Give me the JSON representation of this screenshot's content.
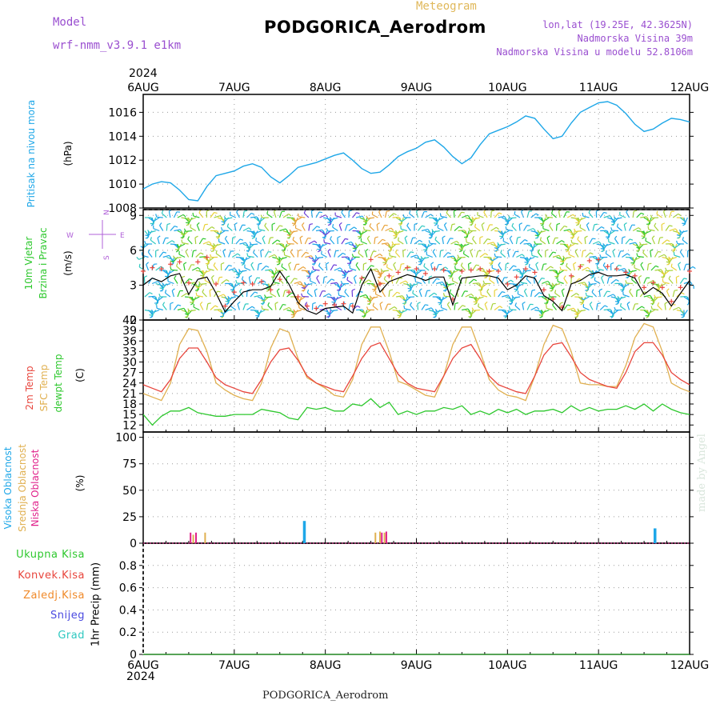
{
  "header": {
    "model_label": "Model",
    "model_name": "wrf-nmm_v3.9.1  e1km",
    "meteogram_label": "Meteogram",
    "station_title": "PODGORICA_Aerodrom",
    "lonlat": "lon,lat (19.25E, 42.3625N)",
    "elevation": "Nadmorska Visina 39m",
    "model_elevation": "Nadmorska Visina u modelu 52.8106m",
    "year": "2024",
    "footer": "PODGORICA_Aerodrom",
    "credit": "made by Angel"
  },
  "colors": {
    "pressure": "#1ea7e8",
    "temp2m": "#e8453c",
    "sfc_temp": "#e0b050",
    "dewpt": "#2ec82e",
    "high_cloud": "#1ea7e8",
    "mid_cloud": "#e0b050",
    "low_cloud": "#e0208a",
    "wind_speed": "#000000",
    "gust": "#e8453c"
  },
  "chart_data": [
    {
      "type": "line",
      "panel": "pressure",
      "ylabel_lines": [
        "Pritisak na nivou mora",
        "(hPa)"
      ],
      "ylim": [
        1008,
        1017.5
      ],
      "yticks": [
        "1008",
        "1010",
        "1012",
        "1014",
        "1016"
      ],
      "xticks": [
        "6AUG",
        "7AUG",
        "8AUG",
        "9AUG",
        "10AUG",
        "11AUG",
        "12AUG"
      ],
      "x_days": [
        0,
        0.1,
        0.2,
        0.3,
        0.4,
        0.5,
        0.6,
        0.7,
        0.8,
        0.9,
        1.0,
        1.1,
        1.2,
        1.3,
        1.4,
        1.5,
        1.6,
        1.7,
        1.8,
        1.9,
        2.0,
        2.1,
        2.2,
        2.3,
        2.4,
        2.5,
        2.6,
        2.7,
        2.8,
        2.9,
        3.0,
        3.1,
        3.2,
        3.3,
        3.4,
        3.5,
        3.6,
        3.7,
        3.8,
        3.9,
        4.0,
        4.1,
        4.2,
        4.3,
        4.4,
        4.5,
        4.6,
        4.7,
        4.8,
        4.9,
        5.0,
        5.1,
        5.2,
        5.3,
        5.4,
        5.5,
        5.6,
        5.7,
        5.8,
        5.9,
        6.0
      ],
      "series": [
        {
          "values": [
            1009.6,
            1010.0,
            1010.2,
            1010.1,
            1009.5,
            1008.7,
            1008.6,
            1009.8,
            1010.7,
            1010.9,
            1011.1,
            1011.5,
            1011.7,
            1011.4,
            1010.6,
            1010.1,
            1010.7,
            1011.4,
            1011.6,
            1011.8,
            1012.1,
            1012.4,
            1012.6,
            1012.0,
            1011.3,
            1010.9,
            1011.0,
            1011.6,
            1012.3,
            1012.7,
            1013.0,
            1013.5,
            1013.7,
            1013.1,
            1012.3,
            1011.7,
            1012.2,
            1013.3,
            1014.2,
            1014.5,
            1014.8,
            1015.2,
            1015.7,
            1015.5,
            1014.6,
            1013.8,
            1014.0,
            1015.1,
            1016.0,
            1016.4,
            1016.8,
            1016.9,
            1016.6,
            1015.9,
            1015.0,
            1014.4,
            1014.6,
            1015.1,
            1015.5,
            1015.4,
            1015.2
          ]
        }
      ]
    },
    {
      "type": "line",
      "panel": "wind",
      "ylabel_lines": [
        "10m Vjetar",
        "Brzina i Pravac",
        "(m/s)"
      ],
      "compass": {
        "north": "N",
        "south": "S",
        "west": "W",
        "east": "E"
      },
      "ylim": [
        0,
        9.5
      ],
      "yticks": [
        "0",
        "3",
        "6",
        "9"
      ],
      "x_days": [
        0,
        0.1,
        0.2,
        0.3,
        0.4,
        0.5,
        0.6,
        0.7,
        0.8,
        0.9,
        1.0,
        1.1,
        1.2,
        1.3,
        1.4,
        1.5,
        1.6,
        1.7,
        1.8,
        1.9,
        2.0,
        2.1,
        2.2,
        2.3,
        2.4,
        2.5,
        2.6,
        2.7,
        2.8,
        2.9,
        3.0,
        3.1,
        3.2,
        3.3,
        3.4,
        3.5,
        3.6,
        3.7,
        3.8,
        3.9,
        4.0,
        4.1,
        4.2,
        4.3,
        4.4,
        4.5,
        4.6,
        4.7,
        4.8,
        4.9,
        5.0,
        5.1,
        5.2,
        5.3,
        5.4,
        5.5,
        5.6,
        5.7,
        5.8,
        5.9,
        6.0
      ],
      "series": [
        {
          "name": "speed",
          "values": [
            3.0,
            3.6,
            3.3,
            3.8,
            4.0,
            2.2,
            3.5,
            3.7,
            2.3,
            0.7,
            1.6,
            2.4,
            2.6,
            2.6,
            2.9,
            4.2,
            3.1,
            1.5,
            0.8,
            0.5,
            1.0,
            1.1,
            1.2,
            0.6,
            3.0,
            4.4,
            2.4,
            3.3,
            3.6,
            3.9,
            3.7,
            3.4,
            3.7,
            3.7,
            1.3,
            3.6,
            3.7,
            3.8,
            3.8,
            3.6,
            2.6,
            3.0,
            3.8,
            3.6,
            2.1,
            1.6,
            0.8,
            3.1,
            3.4,
            3.9,
            4.1,
            3.8,
            3.8,
            3.9,
            3.6,
            2.2,
            2.8,
            2.3,
            1.2,
            2.3,
            3.4
          ]
        },
        {
          "name": "gust",
          "values": [
            4.2,
            4.5,
            4.4,
            4.8,
            5.0,
            3.2,
            5.0,
            5.4,
            3.1,
            1.2,
            2.4,
            3.2,
            3.1,
            3.3,
            2.6,
            3.5,
            2.4,
            2.0,
            1.2,
            1.0,
            1.4,
            1.3,
            1.4,
            1.2,
            3.6,
            5.2,
            3.1,
            3.8,
            4.1,
            4.5,
            4.4,
            4.0,
            4.4,
            4.3,
            1.8,
            4.2,
            4.3,
            4.4,
            4.2,
            4.2,
            3.1,
            3.7,
            4.4,
            4.1,
            2.6,
            1.8,
            1.1,
            3.8,
            4.6,
            5.1,
            5.2,
            4.6,
            4.4,
            4.1,
            3.8,
            2.8,
            3.2,
            2.8,
            1.6,
            2.8,
            4.2
          ]
        }
      ]
    },
    {
      "type": "line",
      "panel": "temperature",
      "ylabel_lines": [
        "2m Temp",
        "SFC Temp",
        "dewpt Temp",
        "(C)"
      ],
      "ylim": [
        10,
        42
      ],
      "yticks": [
        "12",
        "15",
        "18",
        "21",
        "24",
        "27",
        "30",
        "33",
        "36",
        "39",
        "42"
      ],
      "x_days": [
        0,
        0.1,
        0.2,
        0.3,
        0.4,
        0.5,
        0.6,
        0.7,
        0.8,
        0.9,
        1.0,
        1.1,
        1.2,
        1.3,
        1.4,
        1.5,
        1.6,
        1.7,
        1.8,
        1.9,
        2.0,
        2.1,
        2.2,
        2.3,
        2.4,
        2.5,
        2.6,
        2.7,
        2.8,
        2.9,
        3.0,
        3.1,
        3.2,
        3.3,
        3.4,
        3.5,
        3.6,
        3.7,
        3.8,
        3.9,
        4.0,
        4.1,
        4.2,
        4.3,
        4.4,
        4.5,
        4.6,
        4.7,
        4.8,
        4.9,
        5.0,
        5.1,
        5.2,
        5.3,
        5.4,
        5.5,
        5.6,
        5.7,
        5.8,
        5.9,
        6.0
      ],
      "series": [
        {
          "name": "2m Temp",
          "values": [
            23.5,
            22.5,
            21.5,
            25,
            31,
            34,
            34,
            30,
            25.5,
            23.5,
            22.5,
            21.5,
            21,
            25,
            30,
            33.5,
            34,
            30.5,
            26,
            24,
            23,
            22,
            21.5,
            26,
            31,
            34.5,
            35.5,
            31,
            26.5,
            24,
            22.5,
            22,
            21.5,
            26,
            31,
            34,
            35,
            31,
            26,
            23.5,
            22.5,
            21.5,
            21,
            26,
            32,
            35,
            35.5,
            31.5,
            27,
            25,
            24,
            23,
            22.5,
            27,
            33,
            35.5,
            35.5,
            32,
            27,
            25,
            23.5
          ]
        },
        {
          "name": "SFC Temp",
          "values": [
            21,
            20,
            19,
            24,
            35,
            39.5,
            39,
            33,
            24,
            22,
            20.5,
            19.5,
            19,
            24,
            34,
            39.5,
            38.5,
            31,
            25.5,
            24,
            22.5,
            20.5,
            20,
            25,
            35,
            40,
            40,
            33,
            24.5,
            23.5,
            22,
            20.5,
            20,
            26,
            35,
            40,
            40,
            33,
            25,
            22,
            20.5,
            20,
            19,
            26,
            35,
            40.5,
            39.5,
            33,
            24,
            23.5,
            23.5,
            23,
            23,
            29,
            37,
            41,
            40,
            33,
            24,
            22.5,
            21.5
          ]
        },
        {
          "name": "dewpt Temp",
          "values": [
            15,
            12,
            14.5,
            16,
            16,
            17,
            15.5,
            15,
            14.5,
            14.5,
            15,
            15,
            15,
            16.5,
            16,
            15.5,
            14,
            13.5,
            17,
            16.5,
            17,
            16,
            16,
            18,
            17.5,
            19.5,
            17,
            18.5,
            15,
            16,
            15,
            16,
            16,
            17,
            16.5,
            17.5,
            15,
            16,
            15,
            16.5,
            15.5,
            16.5,
            15,
            16,
            16,
            16.5,
            15.5,
            17.5,
            16,
            17,
            16,
            16.5,
            16.5,
            17.5,
            16.5,
            18,
            16,
            18,
            16.5,
            15.5,
            15
          ]
        }
      ]
    },
    {
      "type": "bar",
      "panel": "cloud cover",
      "ylabel_lines": [
        "Visoka Oblacnost",
        "Srednja Oblacnost",
        "Niska Oblacnost",
        "(%)"
      ],
      "ylim": [
        0,
        105
      ],
      "yticks": [
        "0",
        "25",
        "50",
        "75",
        "100"
      ],
      "series": [
        {
          "name": "Visoka Oblacnost",
          "bars": [
            [
              1.77,
              21
            ],
            [
              5.62,
              14
            ]
          ]
        },
        {
          "name": "Srednja Oblacnost",
          "bars": [
            [
              0.55,
              8
            ],
            [
              0.68,
              10
            ],
            [
              2.55,
              10
            ],
            [
              2.6,
              11
            ],
            [
              2.65,
              10
            ]
          ]
        },
        {
          "name": "Niska Oblacnost",
          "bars": [
            [
              0.52,
              10
            ],
            [
              0.58,
              10
            ],
            [
              2.62,
              10
            ],
            [
              2.67,
              11
            ]
          ]
        }
      ]
    },
    {
      "type": "line",
      "panel": "precipitation",
      "ylabel_lines": [
        "1hr Precip (mm)"
      ],
      "legend": [
        "Ukupna Kisa",
        "Konvek.Kisa",
        "Zaledj.Kisa",
        "Snijeg",
        "Grad"
      ],
      "legend_colors": [
        "#2ec82e",
        "#e8453c",
        "#f08a2a",
        "#4a4ae0",
        "#2ec8c0"
      ],
      "ylim": [
        0,
        1.0
      ],
      "yticks": [
        "0",
        "0.2",
        "0.4",
        "0.6",
        "0.8"
      ],
      "series": [
        {
          "name": "Ukupna Kisa",
          "values": [
            0,
            0,
            0,
            0,
            0,
            0,
            0
          ]
        }
      ]
    }
  ]
}
